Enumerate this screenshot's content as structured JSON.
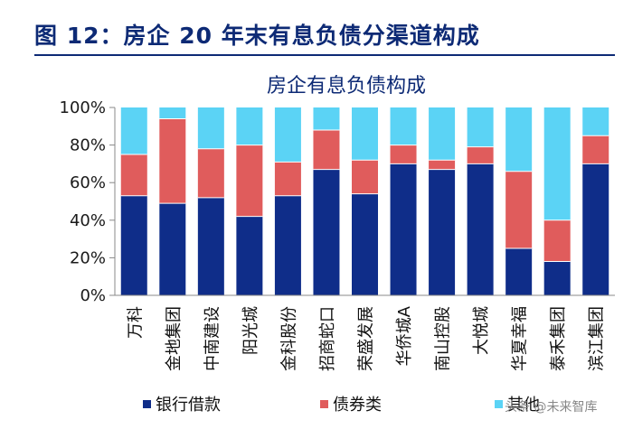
{
  "figure_title": "图 12：房企 20 年末有息负债分渠道构成",
  "watermark": "头条 @未来智库",
  "chart_data": {
    "type": "bar",
    "stacked": true,
    "title": "房企有息负债构成",
    "categories": [
      "万科",
      "金地集团",
      "中南建设",
      "阳光城",
      "金科股份",
      "招商蛇口",
      "荣盛发展",
      "华侨城A",
      "南山控股",
      "大悦城",
      "华夏幸福",
      "泰禾集团",
      "滨江集团"
    ],
    "series": [
      {
        "name": "银行借款",
        "color": "#0f2d89",
        "values": [
          53,
          49,
          52,
          42,
          53,
          67,
          54,
          70,
          67,
          70,
          25,
          18,
          70
        ]
      },
      {
        "name": "债券类",
        "color": "#e05c5c",
        "values": [
          22,
          45,
          26,
          38,
          18,
          21,
          18,
          10,
          5,
          9,
          41,
          22,
          15
        ]
      },
      {
        "name": "其他",
        "color": "#5bd3f5",
        "values": [
          25,
          6,
          22,
          20,
          29,
          12,
          28,
          20,
          28,
          21,
          34,
          60,
          15
        ]
      }
    ],
    "ylim": [
      0,
      100
    ],
    "yticks": [
      "0%",
      "20%",
      "40%",
      "60%",
      "80%",
      "100%"
    ],
    "legend": "bottom"
  }
}
